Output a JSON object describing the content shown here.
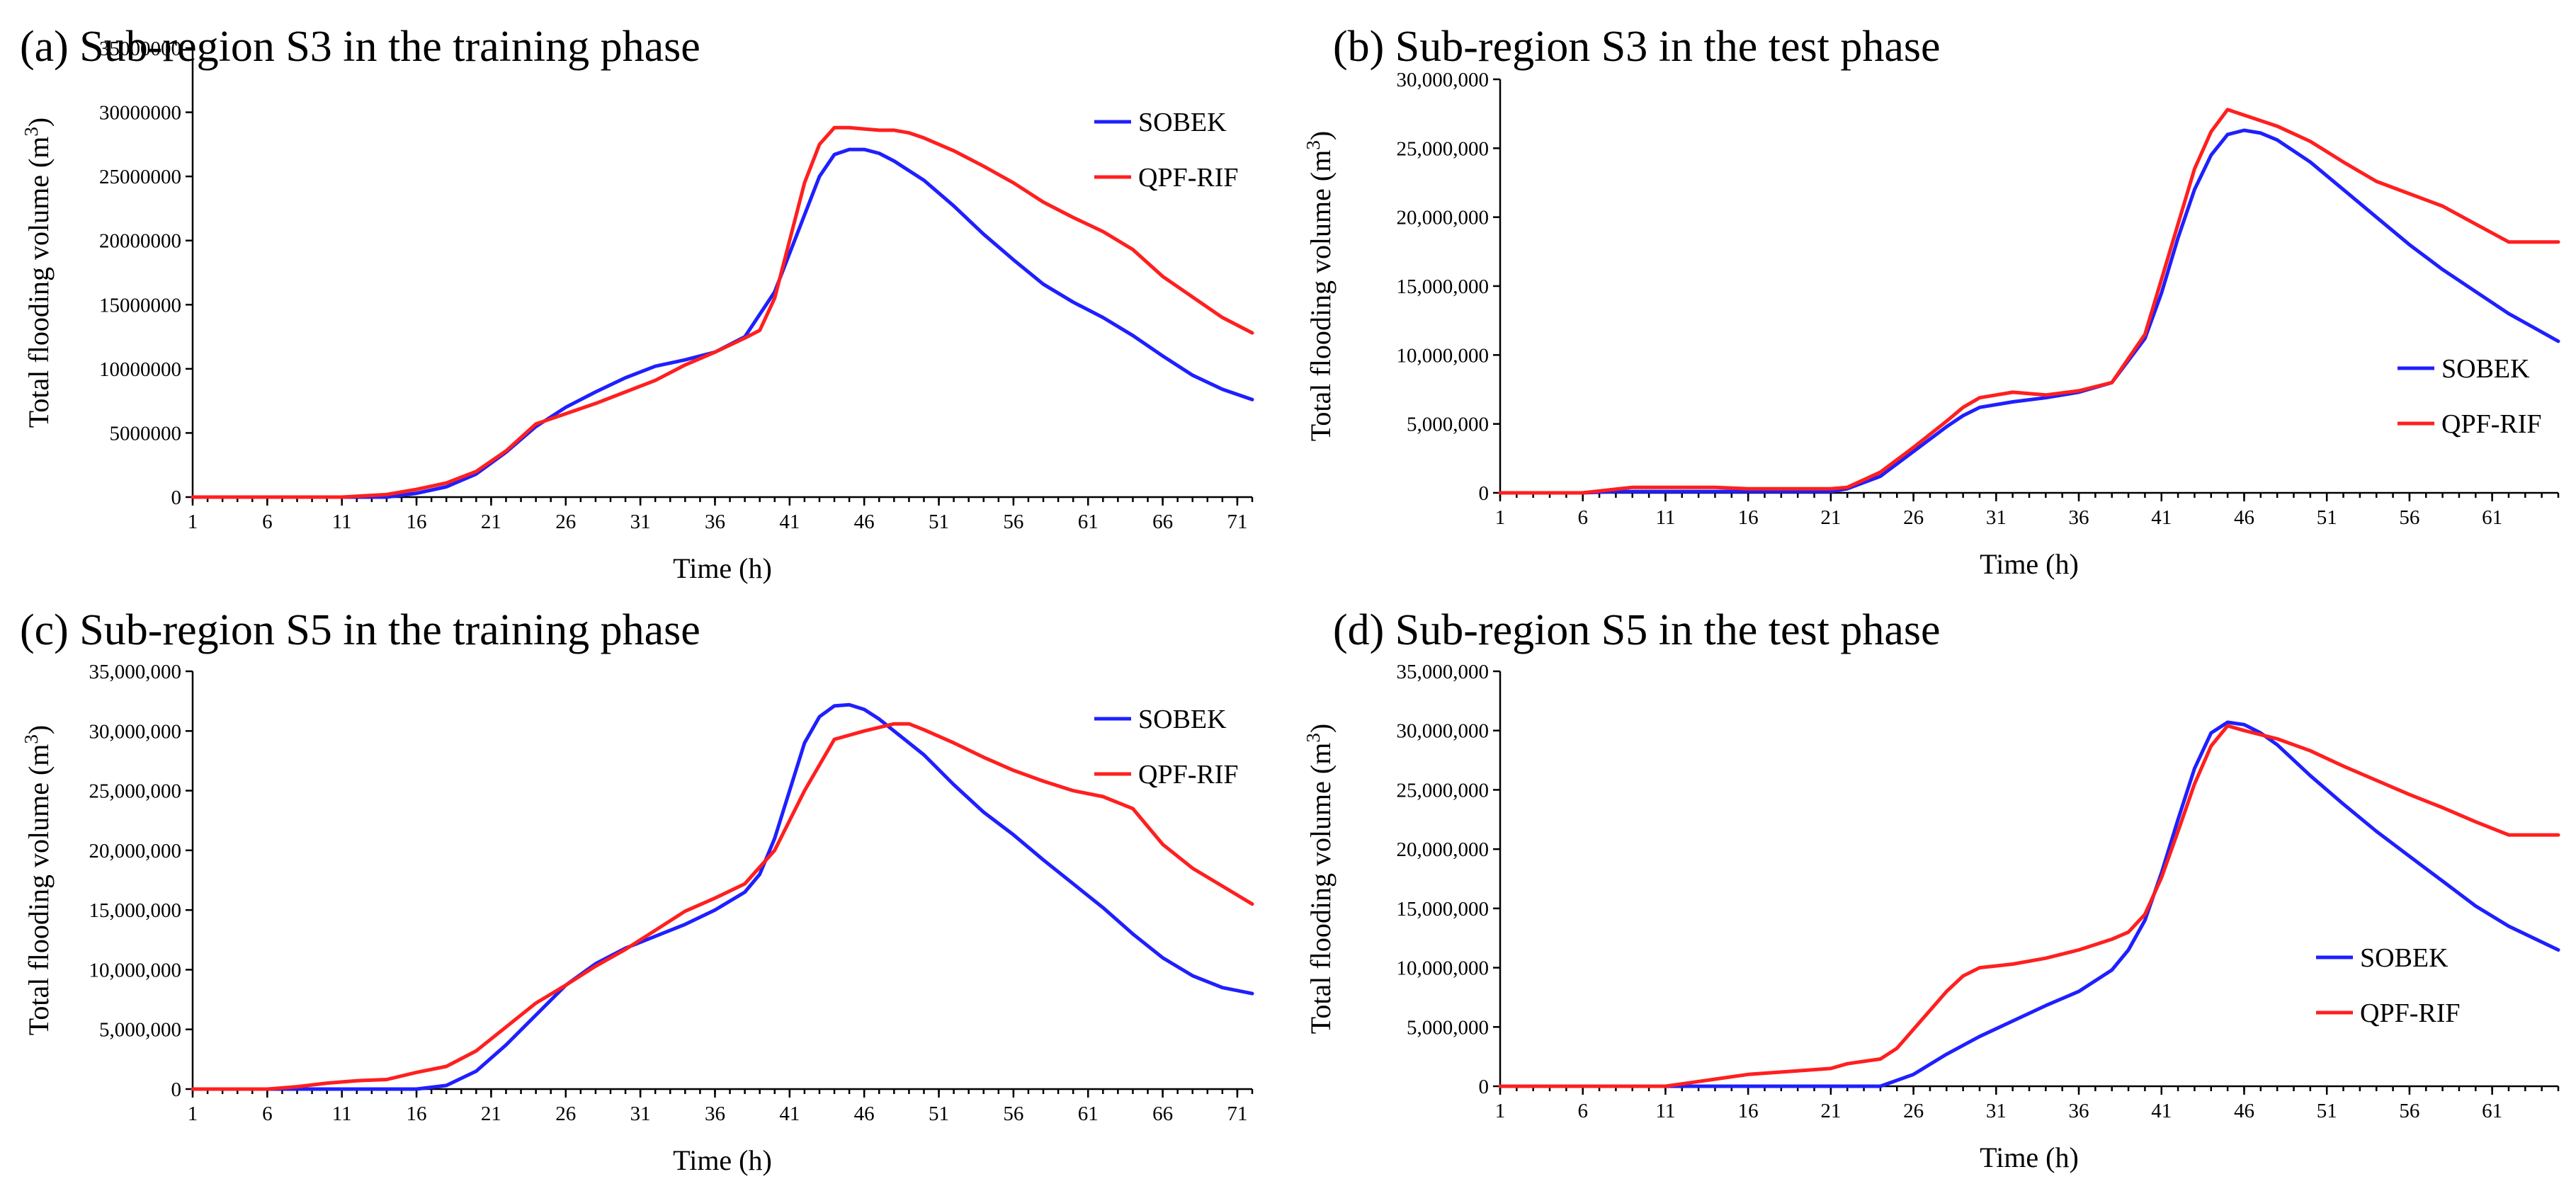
{
  "colors": {
    "sobek": "#1f1fff",
    "qpf_rif": "#ff1f1f",
    "axis": "#000000"
  },
  "chart_data": [
    {
      "id": "a",
      "type": "line",
      "title": "(a) Sub-region S3 in the training phase",
      "xlabel": "Time (h)",
      "ylabel": "Total flooding volume (m",
      "ylabel_sup": "3",
      "ylabel_close": ")",
      "xlim": [
        1,
        72
      ],
      "ylim": [
        0,
        35000000
      ],
      "x_ticks": [
        "1",
        "6",
        "11",
        "16",
        "21",
        "26",
        "31",
        "36",
        "41",
        "46",
        "51",
        "56",
        "61",
        "66",
        "71"
      ],
      "y_ticks": [
        "0",
        "5000000",
        "10000000",
        "15000000",
        "20000000",
        "25000000",
        "30000000",
        "35000000"
      ],
      "legend": [
        "SOBEK",
        "QPF-RIF"
      ],
      "legend_position": "top-right",
      "series": [
        {
          "name": "SOBEK",
          "color": "#1f1fff",
          "x": [
            1,
            11,
            14,
            16,
            18,
            20,
            22,
            24,
            26,
            28,
            30,
            32,
            34,
            36,
            38,
            40,
            42,
            43,
            44,
            45,
            46,
            47,
            48,
            50,
            52,
            54,
            56,
            58,
            60,
            62,
            64,
            66,
            68,
            70,
            72
          ],
          "y": [
            0,
            0,
            0,
            300000,
            800000,
            1800000,
            3500000,
            5500000,
            7000000,
            8200000,
            9300000,
            10200000,
            10700000,
            11300000,
            12500000,
            16000000,
            22000000,
            25000000,
            26700000,
            27100000,
            27100000,
            26800000,
            26200000,
            24700000,
            22700000,
            20500000,
            18500000,
            16600000,
            15200000,
            14000000,
            12600000,
            11000000,
            9500000,
            8400000,
            7600000
          ]
        },
        {
          "name": "QPF-RIF",
          "color": "#ff1f1f",
          "x": [
            1,
            11,
            14,
            16,
            18,
            20,
            22,
            24,
            26,
            28,
            30,
            32,
            34,
            36,
            38,
            39,
            40,
            41,
            42,
            43,
            44,
            45,
            46,
            47,
            48,
            49,
            50,
            52,
            54,
            56,
            58,
            60,
            62,
            64,
            66,
            68,
            70,
            72
          ],
          "y": [
            0,
            0,
            200000,
            600000,
            1100000,
            2000000,
            3600000,
            5700000,
            6500000,
            7300000,
            8200000,
            9100000,
            10300000,
            11300000,
            12400000,
            13000000,
            15500000,
            20000000,
            24500000,
            27500000,
            28800000,
            28800000,
            28700000,
            28600000,
            28600000,
            28400000,
            28000000,
            27000000,
            25800000,
            24500000,
            23000000,
            21800000,
            20700000,
            19300000,
            17200000,
            15600000,
            14000000,
            12800000
          ]
        }
      ]
    },
    {
      "id": "b",
      "type": "line",
      "title": "(b) Sub-region S3 in the test phase",
      "xlabel": "Time (h)",
      "ylabel": "Total flooding volume (m",
      "ylabel_sup": "3",
      "ylabel_close": ")",
      "xlim": [
        1,
        65
      ],
      "ylim": [
        0,
        30000000
      ],
      "x_ticks": [
        "1",
        "6",
        "11",
        "16",
        "21",
        "26",
        "31",
        "36",
        "41",
        "46",
        "51",
        "56",
        "61"
      ],
      "y_ticks": [
        "0",
        "5,000,000",
        "10,000,000",
        "15,000,000",
        "20,000,000",
        "25,000,000",
        "30,000,000"
      ],
      "legend": [
        "SOBEK",
        "QPF-RIF"
      ],
      "legend_position": "lower-right",
      "series": [
        {
          "name": "SOBEK",
          "color": "#1f1fff",
          "x": [
            1,
            6,
            8,
            21,
            22,
            24,
            26,
            28,
            29,
            30,
            32,
            34,
            36,
            38,
            40,
            41,
            42,
            43,
            44,
            45,
            46,
            47,
            48,
            50,
            52,
            54,
            56,
            58,
            60,
            62,
            65
          ],
          "y": [
            0,
            0,
            100000,
            100000,
            300000,
            1200000,
            3000000,
            4800000,
            5600000,
            6200000,
            6600000,
            6900000,
            7300000,
            8000000,
            11200000,
            14500000,
            18500000,
            22000000,
            24500000,
            26000000,
            26300000,
            26100000,
            25600000,
            24000000,
            22000000,
            20000000,
            18000000,
            16200000,
            14600000,
            13000000,
            11000000
          ]
        },
        {
          "name": "QPF-RIF",
          "color": "#ff1f1f",
          "x": [
            1,
            6,
            9,
            14,
            16,
            21,
            22,
            24,
            26,
            28,
            29,
            30,
            32,
            34,
            36,
            38,
            40,
            41,
            42,
            43,
            44,
            45,
            46,
            48,
            50,
            52,
            54,
            56,
            58,
            60,
            62,
            63,
            65
          ],
          "y": [
            0,
            0,
            400000,
            400000,
            300000,
            300000,
            400000,
            1500000,
            3300000,
            5200000,
            6200000,
            6900000,
            7300000,
            7100000,
            7400000,
            8000000,
            11500000,
            15500000,
            19500000,
            23500000,
            26200000,
            27800000,
            27400000,
            26600000,
            25500000,
            24000000,
            22600000,
            21700000,
            20800000,
            19500000,
            18200000,
            18200000,
            18200000
          ]
        }
      ]
    },
    {
      "id": "c",
      "type": "line",
      "title": "(c) Sub-region S5 in the training phase",
      "xlabel": "Time (h)",
      "ylabel": "Total flooding volume (m",
      "ylabel_sup": "3",
      "ylabel_close": ")",
      "xlim": [
        1,
        72
      ],
      "ylim": [
        0,
        35000000
      ],
      "x_ticks": [
        "1",
        "6",
        "11",
        "16",
        "21",
        "26",
        "31",
        "36",
        "41",
        "46",
        "51",
        "56",
        "61",
        "66",
        "71"
      ],
      "y_ticks": [
        "0",
        "5,000,000",
        "10,000,000",
        "15,000,000",
        "20,000,000",
        "25,000,000",
        "30,000,000",
        "35,000,000"
      ],
      "legend": [
        "SOBEK",
        "QPF-RIF"
      ],
      "legend_position": "top-right",
      "series": [
        {
          "name": "SOBEK",
          "color": "#1f1fff",
          "x": [
            1,
            16,
            18,
            20,
            22,
            24,
            26,
            28,
            30,
            32,
            34,
            36,
            38,
            39,
            40,
            41,
            42,
            43,
            44,
            45,
            46,
            47,
            48,
            50,
            52,
            54,
            56,
            58,
            60,
            62,
            64,
            66,
            68,
            70,
            72
          ],
          "y": [
            0,
            0,
            300000,
            1500000,
            3700000,
            6200000,
            8700000,
            10500000,
            11800000,
            12800000,
            13800000,
            15000000,
            16500000,
            18000000,
            21000000,
            25000000,
            29000000,
            31200000,
            32100000,
            32200000,
            31800000,
            31000000,
            30000000,
            28000000,
            25500000,
            23200000,
            21300000,
            19200000,
            17200000,
            15200000,
            13000000,
            11000000,
            9500000,
            8500000,
            8000000
          ]
        },
        {
          "name": "QPF-RIF",
          "color": "#ff1f1f",
          "x": [
            1,
            6,
            8,
            10,
            12,
            14,
            16,
            18,
            20,
            22,
            24,
            26,
            28,
            30,
            32,
            34,
            36,
            38,
            40,
            42,
            44,
            46,
            48,
            49,
            50,
            52,
            54,
            56,
            58,
            60,
            62,
            64,
            66,
            68,
            70,
            72
          ],
          "y": [
            0,
            0,
            200000,
            500000,
            700000,
            800000,
            1400000,
            1900000,
            3200000,
            5200000,
            7200000,
            8700000,
            10300000,
            11700000,
            13300000,
            14900000,
            16000000,
            17200000,
            20000000,
            25000000,
            29300000,
            30000000,
            30600000,
            30600000,
            30100000,
            29000000,
            27800000,
            26700000,
            25800000,
            25000000,
            24500000,
            23500000,
            20500000,
            18500000,
            17000000,
            15500000
          ]
        }
      ]
    },
    {
      "id": "d",
      "type": "line",
      "title": "(d) Sub-region S5 in the test phase",
      "xlabel": "Time (h)",
      "ylabel": "Total flooding volume (m",
      "ylabel_sup": "3",
      "ylabel_close": ")",
      "xlim": [
        1,
        65
      ],
      "ylim": [
        0,
        35000000
      ],
      "x_ticks": [
        "1",
        "6",
        "11",
        "16",
        "21",
        "26",
        "31",
        "36",
        "41",
        "46",
        "51",
        "56",
        "61"
      ],
      "y_ticks": [
        "0",
        "5,000,000",
        "10,000,000",
        "15,000,000",
        "20,000,000",
        "25,000,000",
        "30,000,000",
        "35,000,000"
      ],
      "legend": [
        "SOBEK",
        "QPF-RIF"
      ],
      "legend_position": "lower-right",
      "series": [
        {
          "name": "SOBEK",
          "color": "#1f1fff",
          "x": [
            1,
            24,
            26,
            28,
            30,
            32,
            34,
            36,
            38,
            39,
            40,
            41,
            42,
            43,
            44,
            45,
            46,
            47,
            48,
            50,
            52,
            54,
            56,
            58,
            60,
            62,
            65
          ],
          "y": [
            0,
            0,
            1000000,
            2700000,
            4200000,
            5500000,
            6800000,
            8000000,
            9800000,
            11500000,
            14000000,
            18000000,
            22500000,
            26800000,
            29800000,
            30700000,
            30500000,
            29800000,
            28800000,
            26200000,
            23800000,
            21500000,
            19400000,
            17300000,
            15200000,
            13500000,
            11500000
          ]
        },
        {
          "name": "QPF-RIF",
          "color": "#ff1f1f",
          "x": [
            1,
            11,
            13,
            16,
            19,
            21,
            22,
            24,
            25,
            26,
            28,
            29,
            30,
            32,
            34,
            36,
            38,
            39,
            40,
            41,
            42,
            43,
            44,
            45,
            46,
            48,
            50,
            52,
            54,
            56,
            58,
            60,
            62,
            63,
            65
          ],
          "y": [
            0,
            0,
            400000,
            1000000,
            1300000,
            1500000,
            1900000,
            2300000,
            3200000,
            4800000,
            8000000,
            9300000,
            10000000,
            10300000,
            10800000,
            11500000,
            12400000,
            13000000,
            14500000,
            17600000,
            21500000,
            25500000,
            28700000,
            30400000,
            30000000,
            29300000,
            28300000,
            27000000,
            25800000,
            24600000,
            23500000,
            22300000,
            21200000,
            21200000,
            21200000
          ]
        }
      ]
    }
  ]
}
